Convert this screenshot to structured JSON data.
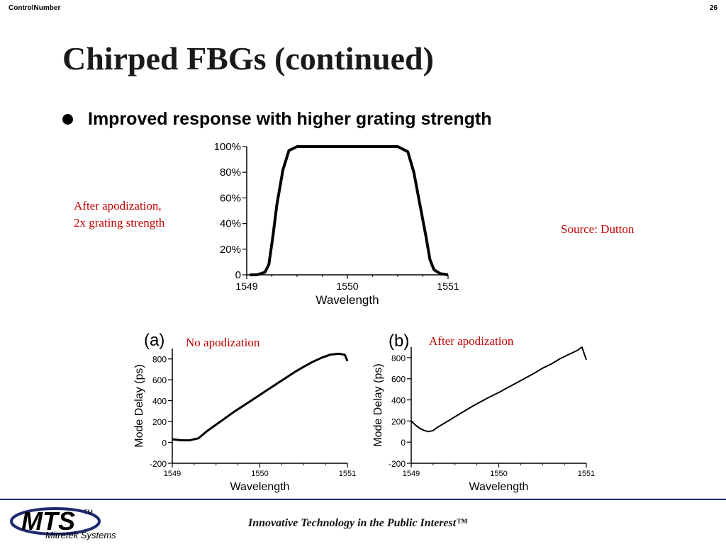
{
  "header": {
    "control_label": "ControlNumber",
    "page_number": "26"
  },
  "slide": {
    "title": "Chirped FBGs (continued)",
    "bullet": "Improved response with higher grating strength",
    "note_left": "After apodization, 2x grating strength",
    "source": "Source: Dutton",
    "note_a": "No apodization",
    "note_b": "After apodization"
  },
  "footer": {
    "logo_text": "MTS",
    "logo_tm": "TM",
    "logo_sub": "Mitretek Systems",
    "tagline": "Innovative Technology in the Public Interest™"
  },
  "colors": {
    "accent": "#c00000",
    "brand": "#1f2a6e"
  },
  "chart_data": [
    {
      "type": "line",
      "title": "",
      "xlabel": "Wavelength",
      "ylabel": "",
      "x_ticks": [
        "1549",
        "1550",
        "1551"
      ],
      "y_ticks": [
        "0",
        "20%",
        "40%",
        "60%",
        "80%",
        "100%"
      ],
      "xlim": [
        1549,
        1551
      ],
      "ylim": [
        0,
        100
      ],
      "series": [
        {
          "x": [
            1549.03,
            1549.1,
            1549.18,
            1549.22,
            1549.26,
            1549.3,
            1549.36,
            1549.42,
            1549.5,
            1550.0,
            1550.5,
            1550.6,
            1550.66,
            1550.72,
            1550.78,
            1550.82,
            1550.86,
            1550.92,
            1551.0
          ],
          "y": [
            0,
            0,
            2,
            8,
            30,
            55,
            82,
            97,
            100,
            100,
            100,
            96,
            80,
            55,
            30,
            12,
            4,
            1,
            0
          ]
        }
      ]
    },
    {
      "type": "line",
      "label": "(a)",
      "xlabel": "Wavelength",
      "ylabel": "Mode Delay (ps)",
      "x_ticks": [
        "1549",
        "1550",
        "1551"
      ],
      "y_ticks": [
        "-200",
        "0",
        "200",
        "400",
        "600",
        "800"
      ],
      "xlim": [
        1549,
        1551
      ],
      "ylim": [
        -200,
        900
      ],
      "series": [
        {
          "x": [
            1549.0,
            1549.1,
            1549.2,
            1549.3,
            1549.4,
            1549.5,
            1549.6,
            1549.7,
            1549.8,
            1549.9,
            1550.0,
            1550.1,
            1550.2,
            1550.3,
            1550.4,
            1550.5,
            1550.6,
            1550.7,
            1550.8,
            1550.9,
            1550.97,
            1551.0
          ],
          "y": [
            30,
            20,
            20,
            40,
            110,
            170,
            230,
            290,
            345,
            400,
            455,
            510,
            565,
            620,
            675,
            725,
            770,
            810,
            840,
            850,
            840,
            780
          ]
        }
      ]
    },
    {
      "type": "line",
      "label": "(b)",
      "xlabel": "Wavelength",
      "ylabel": "Mode Delay (ps)",
      "x_ticks": [
        "1549",
        "1550",
        "1551"
      ],
      "y_ticks": [
        "-200",
        "0",
        "200",
        "400",
        "600",
        "800"
      ],
      "xlim": [
        1549,
        1551
      ],
      "ylim": [
        -200,
        900
      ],
      "series": [
        {
          "x": [
            1549.0,
            1549.05,
            1549.1,
            1549.15,
            1549.2,
            1549.25,
            1549.3,
            1549.4,
            1549.5,
            1549.6,
            1549.7,
            1549.8,
            1549.9,
            1550.0,
            1550.1,
            1550.2,
            1550.3,
            1550.4,
            1550.5,
            1550.6,
            1550.7,
            1550.8,
            1550.9,
            1550.95,
            1551.0
          ],
          "y": [
            200,
            160,
            130,
            110,
            100,
            110,
            140,
            190,
            240,
            290,
            340,
            385,
            430,
            470,
            515,
            560,
            605,
            650,
            700,
            740,
            790,
            830,
            870,
            900,
            780
          ]
        }
      ]
    }
  ]
}
